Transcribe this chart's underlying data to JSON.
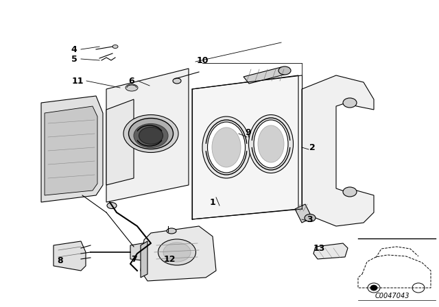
{
  "background_color": "#ffffff",
  "line_color": "#000000",
  "fig_width": 6.4,
  "fig_height": 4.48,
  "dpi": 100,
  "watermark": "C0047043"
}
